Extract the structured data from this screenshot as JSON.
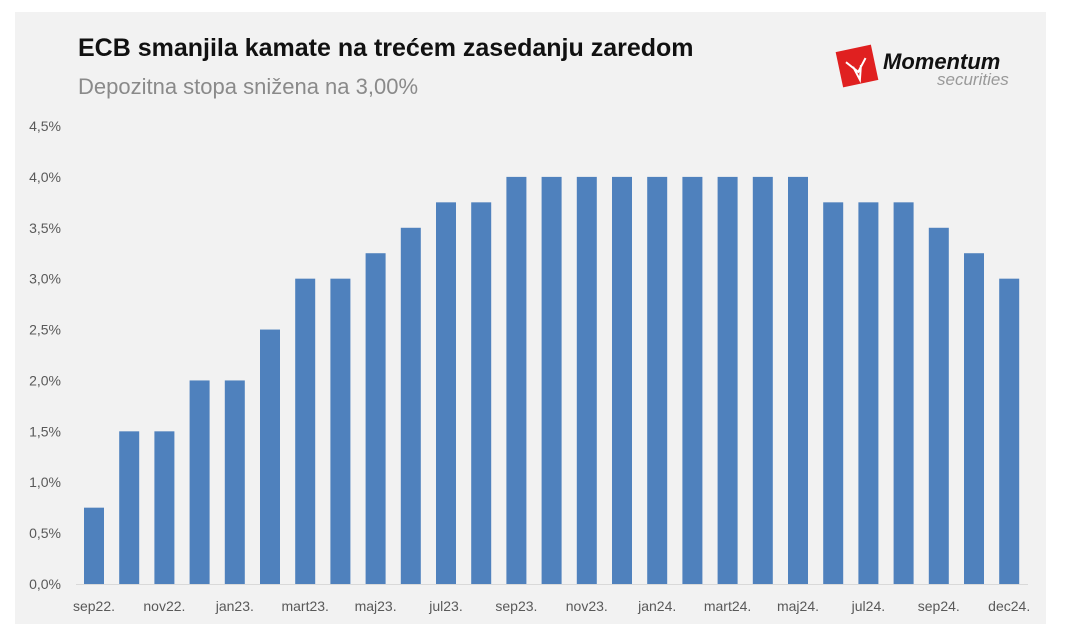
{
  "chart_data": {
    "type": "bar",
    "title": "ECB smanjila kamate na trećem zasedanju zaredom",
    "subtitle": "Depozitna stopa snižena na 3,00%",
    "categories": [
      "sep22.",
      "",
      "nov22.",
      "",
      "jan23.",
      "",
      "mart23.",
      "",
      "maj23.",
      "",
      "jul23.",
      "",
      "sep23.",
      "",
      "nov23.",
      "",
      "jan24.",
      "",
      "mart24.",
      "",
      "maj24.",
      "",
      "jul24.",
      "",
      "sep24.",
      "",
      "dec24."
    ],
    "values": [
      0.75,
      1.5,
      1.5,
      2.0,
      2.0,
      2.5,
      3.0,
      3.0,
      3.25,
      3.5,
      3.75,
      3.75,
      4.0,
      4.0,
      4.0,
      4.0,
      4.0,
      4.0,
      4.0,
      4.0,
      4.0,
      3.75,
      3.75,
      3.75,
      3.5,
      3.25,
      3.0
    ],
    "yticks": [
      "0,0%",
      "0,5%",
      "1,0%",
      "1,5%",
      "2,0%",
      "2,5%",
      "3,0%",
      "3,5%",
      "4,0%",
      "4,5%"
    ],
    "ylim": [
      0,
      4.5
    ],
    "grid": false,
    "bar_color": "#4f81bd",
    "xlabel": "",
    "ylabel": ""
  },
  "logo": {
    "name": "Momentum",
    "sub": "securities",
    "color": "#e02020"
  }
}
